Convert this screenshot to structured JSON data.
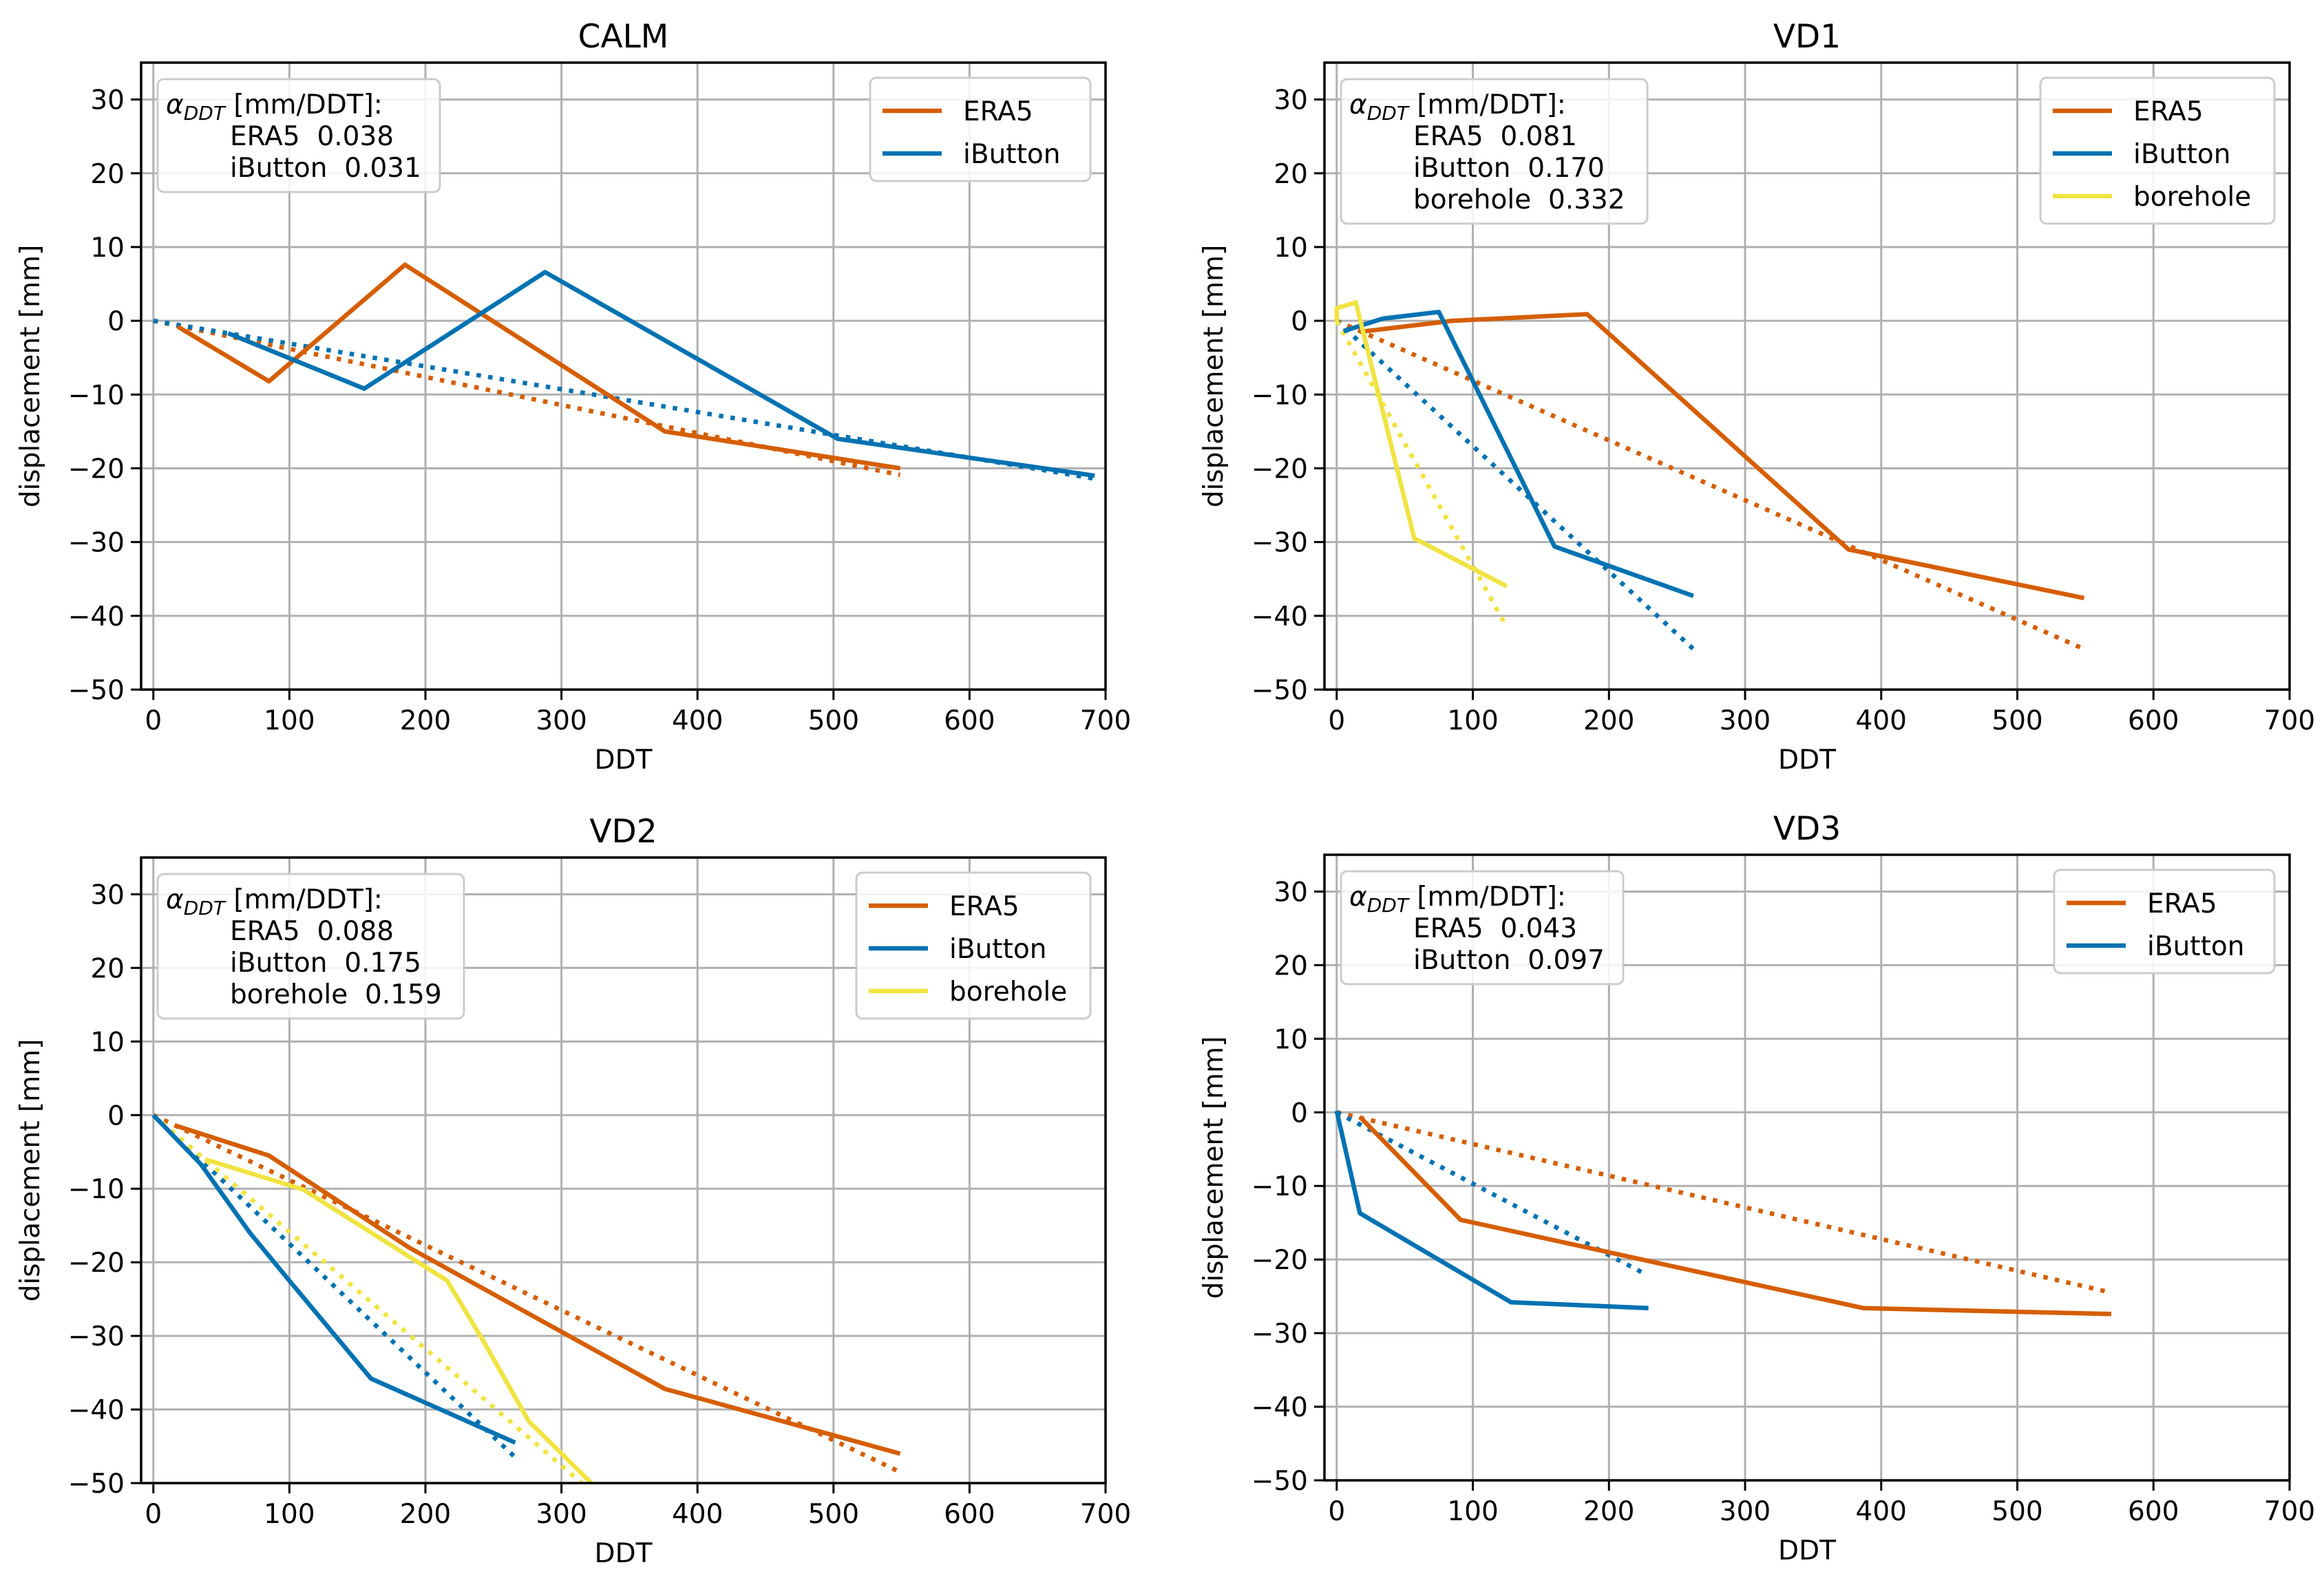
{
  "figure": {
    "annotation_header": "[mm/DDT]:",
    "annotation_symbol": "α",
    "annotation_subscript": "DDT"
  },
  "colors": {
    "ERA5": "#d55e00",
    "iButton": "#0072b2",
    "borehole": "#f0e442",
    "grid": "#b0b0b0",
    "legend_border": "#cccccc"
  },
  "chart_data": [
    {
      "type": "line",
      "title": "CALM",
      "xlabel": "DDT",
      "ylabel": "displacement [mm]",
      "xlim": [
        -9,
        700
      ],
      "ylim": [
        -50,
        35
      ],
      "xticks": [
        0,
        100,
        200,
        300,
        400,
        500,
        600,
        700
      ],
      "yticks": [
        -50,
        -40,
        -30,
        -20,
        -10,
        0,
        10,
        20,
        30
      ],
      "grid": true,
      "legend_position": "top-right",
      "annotation_position": "top-left",
      "series": [
        {
          "name": "ERA5",
          "style": "solid",
          "x": [
            18,
            85,
            185,
            376,
            549
          ],
          "y": [
            -0.8,
            -8.2,
            7.6,
            -15.0,
            -20.0
          ]
        },
        {
          "name": "iButton",
          "style": "solid",
          "x": [
            55,
            155,
            288,
            503,
            692
          ],
          "y": [
            -1.7,
            -9.2,
            6.6,
            -16.0,
            -21.0
          ]
        },
        {
          "name": "ERA5 fit",
          "style": "dotted",
          "color_of": "ERA5",
          "x": [
            0,
            549
          ],
          "y": [
            0,
            -20.9
          ]
        },
        {
          "name": "iButton fit",
          "style": "dotted",
          "color_of": "iButton",
          "x": [
            0,
            692
          ],
          "y": [
            0,
            -21.4
          ]
        }
      ],
      "legend": [
        "ERA5",
        "iButton"
      ],
      "alpha_ddt": [
        {
          "name": "ERA5",
          "value": "0.038"
        },
        {
          "name": "iButton",
          "value": "0.031"
        }
      ]
    },
    {
      "type": "line",
      "title": "VD1",
      "xlabel": "DDT",
      "ylabel": "displacement [mm]",
      "xlim": [
        -9,
        700
      ],
      "ylim": [
        -50,
        35
      ],
      "xticks": [
        0,
        100,
        200,
        300,
        400,
        500,
        600,
        700
      ],
      "yticks": [
        -50,
        -40,
        -30,
        -20,
        -10,
        0,
        10,
        20,
        30
      ],
      "grid": true,
      "legend_position": "top-right",
      "annotation_position": "top-left",
      "series": [
        {
          "name": "ERA5",
          "style": "solid",
          "x": [
            17,
            85,
            184,
            376,
            549
          ],
          "y": [
            -1.5,
            0.0,
            0.9,
            -31.0,
            -37.6
          ]
        },
        {
          "name": "iButton",
          "style": "solid",
          "x": [
            5,
            34,
            75,
            160,
            262
          ],
          "y": [
            -1.4,
            0.3,
            1.2,
            -30.6,
            -37.3
          ]
        },
        {
          "name": "borehole",
          "style": "solid",
          "x": [
            0,
            0,
            14,
            57,
            125
          ],
          "y": [
            -0.2,
            1.7,
            2.5,
            -29.5,
            -36.0
          ]
        },
        {
          "name": "ERA5 fit",
          "style": "dotted",
          "color_of": "ERA5",
          "x": [
            0,
            549
          ],
          "y": [
            0,
            -44.5
          ]
        },
        {
          "name": "iButton fit",
          "style": "dotted",
          "color_of": "iButton",
          "x": [
            0,
            262
          ],
          "y": [
            0,
            -44.5
          ]
        },
        {
          "name": "borehole fit",
          "style": "dotted",
          "color_of": "borehole",
          "x": [
            0,
            124
          ],
          "y": [
            0,
            -41.2
          ]
        }
      ],
      "legend": [
        "ERA5",
        "iButton",
        "borehole"
      ],
      "alpha_ddt": [
        {
          "name": "ERA5",
          "value": "0.081"
        },
        {
          "name": "iButton",
          "value": "0.170"
        },
        {
          "name": "borehole",
          "value": "0.332"
        }
      ]
    },
    {
      "type": "line",
      "title": "VD2",
      "xlabel": "DDT",
      "ylabel": "displacement [mm]",
      "xlim": [
        -9,
        700
      ],
      "ylim": [
        -50,
        35
      ],
      "xticks": [
        0,
        100,
        200,
        300,
        400,
        500,
        600,
        700
      ],
      "yticks": [
        -50,
        -40,
        -30,
        -20,
        -10,
        0,
        10,
        20,
        30
      ],
      "grid": true,
      "legend_position": "top-right",
      "annotation_position": "top-left",
      "series": [
        {
          "name": "ERA5",
          "style": "solid",
          "x": [
            16,
            85,
            188,
            376,
            549
          ],
          "y": [
            -1.4,
            -5.5,
            -18.0,
            -37.2,
            -46.0
          ]
        },
        {
          "name": "iButton",
          "style": "solid",
          "x": [
            0,
            35,
            71,
            100,
            160,
            266
          ],
          "y": [
            0,
            -6.7,
            -16.0,
            -22.5,
            -35.8,
            -44.5
          ]
        },
        {
          "name": "borehole",
          "style": "solid",
          "x": [
            38,
            110,
            216,
            242,
            276,
            322
          ],
          "y": [
            -6.0,
            -10.1,
            -22.5,
            -30.5,
            -41.6,
            -50.0
          ]
        },
        {
          "name": "ERA5 fit",
          "style": "dotted",
          "color_of": "ERA5",
          "x": [
            0,
            549
          ],
          "y": [
            0,
            -48.5
          ]
        },
        {
          "name": "iButton fit",
          "style": "dotted",
          "color_of": "iButton",
          "x": [
            0,
            266
          ],
          "y": [
            0,
            -46.5
          ]
        },
        {
          "name": "borehole fit",
          "style": "dotted",
          "color_of": "borehole",
          "x": [
            0,
            315
          ],
          "y": [
            0,
            -50.0
          ]
        }
      ],
      "legend": [
        "ERA5",
        "iButton",
        "borehole"
      ],
      "alpha_ddt": [
        {
          "name": "ERA5",
          "value": "0.088"
        },
        {
          "name": "iButton",
          "value": "0.175"
        },
        {
          "name": "borehole",
          "value": "0.159"
        }
      ]
    },
    {
      "type": "line",
      "title": "VD3",
      "xlabel": "DDT",
      "ylabel": "displacement [mm]",
      "xlim": [
        -9,
        700
      ],
      "ylim": [
        -50,
        35
      ],
      "xticks": [
        0,
        100,
        200,
        300,
        400,
        500,
        600,
        700
      ],
      "yticks": [
        -50,
        -40,
        -30,
        -20,
        -10,
        0,
        10,
        20,
        30
      ],
      "grid": true,
      "legend_position": "top-right",
      "annotation_position": "top-left",
      "series": [
        {
          "name": "ERA5",
          "style": "solid",
          "x": [
            17,
            91,
            387,
            569
          ],
          "y": [
            -0.6,
            -14.6,
            -26.6,
            -27.4
          ]
        },
        {
          "name": "iButton",
          "style": "solid",
          "x": [
            0,
            17,
            128,
            229
          ],
          "y": [
            0.2,
            -13.7,
            -25.8,
            -26.6
          ]
        },
        {
          "name": "ERA5 fit",
          "style": "dotted",
          "color_of": "ERA5",
          "x": [
            0,
            569
          ],
          "y": [
            0,
            -24.5
          ]
        },
        {
          "name": "iButton fit",
          "style": "dotted",
          "color_of": "iButton",
          "x": [
            0,
            227
          ],
          "y": [
            0,
            -22.0
          ]
        }
      ],
      "legend": [
        "ERA5",
        "iButton"
      ],
      "alpha_ddt": [
        {
          "name": "ERA5",
          "value": "0.043"
        },
        {
          "name": "iButton",
          "value": "0.097"
        }
      ]
    }
  ]
}
